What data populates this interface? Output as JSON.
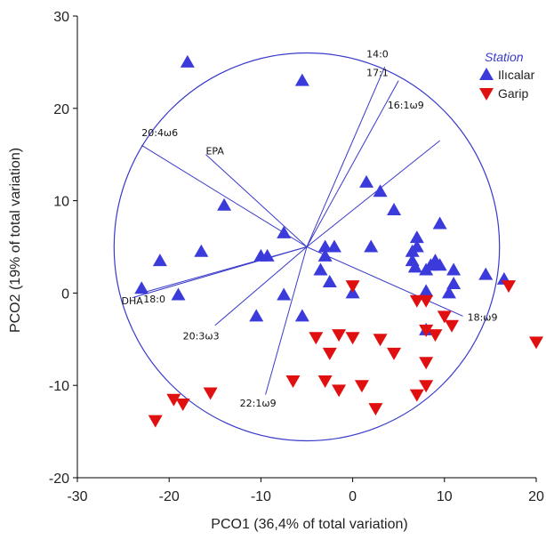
{
  "chart_data": {
    "type": "scatter",
    "xlabel": "PCO1 (36,4% of total variation)",
    "ylabel": "PCO2 (19% of total variation)",
    "xlim": [
      -30,
      20
    ],
    "ylim": [
      -20,
      30
    ],
    "xticks": [
      -30,
      -20,
      -10,
      0,
      10,
      20
    ],
    "yticks": [
      -20,
      -10,
      0,
      10,
      20,
      30
    ],
    "legend": {
      "title": "Station",
      "position": "top-right"
    },
    "circle": {
      "center": [
        -5,
        5
      ],
      "radius": 21
    },
    "series": [
      {
        "name": "Ilıcalar",
        "marker": "triangle-up",
        "color": "#3b3bdc",
        "points": [
          [
            -18,
            25
          ],
          [
            -5.5,
            23
          ],
          [
            1.5,
            12
          ],
          [
            3,
            11
          ],
          [
            4.5,
            9
          ],
          [
            -14,
            9.5
          ],
          [
            9.5,
            7.5
          ],
          [
            -7.5,
            6.5
          ],
          [
            7,
            6
          ],
          [
            7,
            5
          ],
          [
            6.5,
            4.5
          ],
          [
            -16.5,
            4.5
          ],
          [
            -3,
            5
          ],
          [
            -2,
            5
          ],
          [
            2,
            5
          ],
          [
            -3,
            4
          ],
          [
            -21,
            3.5
          ],
          [
            -10,
            4
          ],
          [
            -9.3,
            4
          ],
          [
            9,
            3.5
          ],
          [
            6.5,
            3.5
          ],
          [
            8.5,
            3
          ],
          [
            6.8,
            2.8
          ],
          [
            11,
            2.5
          ],
          [
            9.5,
            3
          ],
          [
            -3.5,
            2.5
          ],
          [
            8,
            2.5
          ],
          [
            14.5,
            2
          ],
          [
            16.5,
            1.5
          ],
          [
            -2.5,
            1.2
          ],
          [
            11,
            1
          ],
          [
            -23,
            0.5
          ],
          [
            8,
            0.2
          ],
          [
            -19,
            -0.2
          ],
          [
            -7.5,
            -0.2
          ],
          [
            10.5,
            0
          ],
          [
            0,
            0
          ],
          [
            -10.5,
            -2.5
          ],
          [
            -5.5,
            -2.5
          ],
          [
            8,
            -4
          ]
        ]
      },
      {
        "name": "Garip",
        "marker": "triangle-down",
        "color": "#e01010",
        "points": [
          [
            17,
            0.8
          ],
          [
            0,
            0.8
          ],
          [
            7,
            -0.8
          ],
          [
            8,
            -0.8
          ],
          [
            10,
            -2.5
          ],
          [
            10.8,
            -3.5
          ],
          [
            20,
            -5.3
          ],
          [
            -4,
            -4.8
          ],
          [
            -1.5,
            -4.5
          ],
          [
            0,
            -4.8
          ],
          [
            3,
            -5
          ],
          [
            8,
            -4
          ],
          [
            9,
            -4.5
          ],
          [
            -2.5,
            -6.5
          ],
          [
            4.5,
            -6.5
          ],
          [
            8,
            -7.5
          ],
          [
            -6.5,
            -9.5
          ],
          [
            -3,
            -9.5
          ],
          [
            1,
            -10
          ],
          [
            8,
            -10
          ],
          [
            7,
            -11
          ],
          [
            -1.5,
            -10.5
          ],
          [
            -15.5,
            -10.8
          ],
          [
            -19.5,
            -11.5
          ],
          [
            -18.5,
            -12
          ],
          [
            2.5,
            -12.5
          ],
          [
            -21.5,
            -13.8
          ]
        ]
      }
    ],
    "vectors": [
      {
        "label": "14:0",
        "end": [
          3.5,
          24.5
        ],
        "label_pos": [
          1.5,
          25.5
        ]
      },
      {
        "label": "17:1",
        "end": [
          5,
          23
        ],
        "label_pos": [
          1.5,
          23.5
        ]
      },
      {
        "label": "16:1ω9",
        "end": [
          9.5,
          16.5
        ],
        "label_pos": [
          3.8,
          20
        ]
      },
      {
        "label": "20:4ω6",
        "end": [
          -23,
          16
        ],
        "label_pos": [
          -23,
          17
        ]
      },
      {
        "label": "EPA",
        "end": [
          -16,
          15
        ],
        "label_pos": [
          -16,
          15
        ]
      },
      {
        "label": "DHA",
        "end": [
          -24,
          -0.5
        ],
        "label_pos": [
          -25.2,
          -1.2
        ]
      },
      {
        "label": "18:0",
        "end": [
          -23,
          0
        ],
        "label_pos": [
          -22.8,
          -1
        ]
      },
      {
        "label": "20:3ω3",
        "end": [
          -15,
          -3.5
        ],
        "label_pos": [
          -18.5,
          -5
        ]
      },
      {
        "label": "22:1ω9",
        "end": [
          -9.5,
          -11
        ],
        "label_pos": [
          -12.3,
          -12.3
        ]
      },
      {
        "label": "18:ω9",
        "end": [
          12,
          -2.5
        ],
        "label_pos": [
          12.5,
          -3
        ]
      }
    ],
    "vector_origin": [
      -5,
      5
    ]
  }
}
